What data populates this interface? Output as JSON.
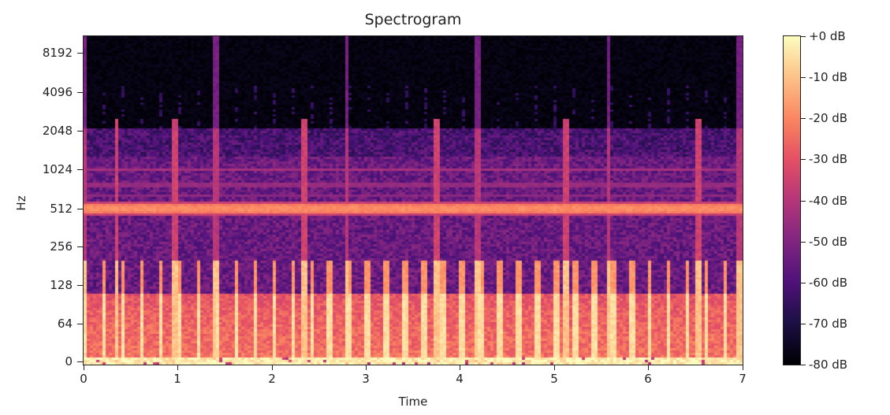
{
  "chart_data": {
    "type": "heatmap",
    "title": "Spectrogram",
    "xlabel": "Time",
    "ylabel": "Hz",
    "xlim": [
      0,
      7
    ],
    "y_scale": "log (librosa 'log' axis)",
    "x_ticks": [
      {
        "label": "0",
        "value": 0,
        "px": 106
      },
      {
        "label": "1",
        "value": 1,
        "px": 225
      },
      {
        "label": "2",
        "value": 2,
        "px": 345
      },
      {
        "label": "3",
        "value": 3,
        "px": 464
      },
      {
        "label": "4",
        "value": 4,
        "px": 583
      },
      {
        "label": "5",
        "value": 5,
        "px": 703
      },
      {
        "label": "6",
        "value": 6,
        "px": 822
      },
      {
        "label": "7",
        "value": 7,
        "px": 942
      }
    ],
    "y_ticks": [
      {
        "label": "8192",
        "value": 8192,
        "px": 67
      },
      {
        "label": "4096",
        "value": 4096,
        "px": 117
      },
      {
        "label": "2048",
        "value": 2048,
        "px": 166
      },
      {
        "label": "1024",
        "value": 1024,
        "px": 215
      },
      {
        "label": "512",
        "value": 512,
        "px": 265
      },
      {
        "label": "256",
        "value": 256,
        "px": 313
      },
      {
        "label": "128",
        "value": 128,
        "px": 362
      },
      {
        "label": "64",
        "value": 64,
        "px": 411
      },
      {
        "label": "0",
        "value": 0,
        "px": 459
      }
    ],
    "colorbar": {
      "colormap": "magma",
      "range_db": [
        -80,
        0
      ],
      "ticks": [
        {
          "label": "+0 dB",
          "value": 0
        },
        {
          "label": "-10 dB",
          "value": -10
        },
        {
          "label": "-20 dB",
          "value": -20
        },
        {
          "label": "-30 dB",
          "value": -30
        },
        {
          "label": "-40 dB",
          "value": -40
        },
        {
          "label": "-50 dB",
          "value": -50
        },
        {
          "label": "-60 dB",
          "value": -60
        },
        {
          "label": "-70 dB",
          "value": -70
        },
        {
          "label": "-80 dB",
          "value": -80
        }
      ]
    },
    "features": {
      "tonal_band_hz": 512,
      "tonal_band_level_db": -20,
      "secondary_bands_hz": [
        1024,
        800,
        640
      ],
      "noise_ceiling_hz": 2200,
      "major_transient_times_s": [
        0.02,
        1.41,
        2.8,
        4.19,
        5.58,
        6.97
      ],
      "medium_transient_times_s": [
        0.35,
        0.97,
        2.35,
        3.74,
        5.13,
        6.53
      ],
      "beat_interval_s": 0.2,
      "low_freq_energy_db": -5
    }
  },
  "colors": {
    "background": "#ffffff",
    "axis": "#222222",
    "magma_stops": [
      "#000004",
      "#1c1044",
      "#4f127b",
      "#812581",
      "#b5367a",
      "#e55064",
      "#fb8761",
      "#fec287",
      "#fcfdbf"
    ]
  }
}
